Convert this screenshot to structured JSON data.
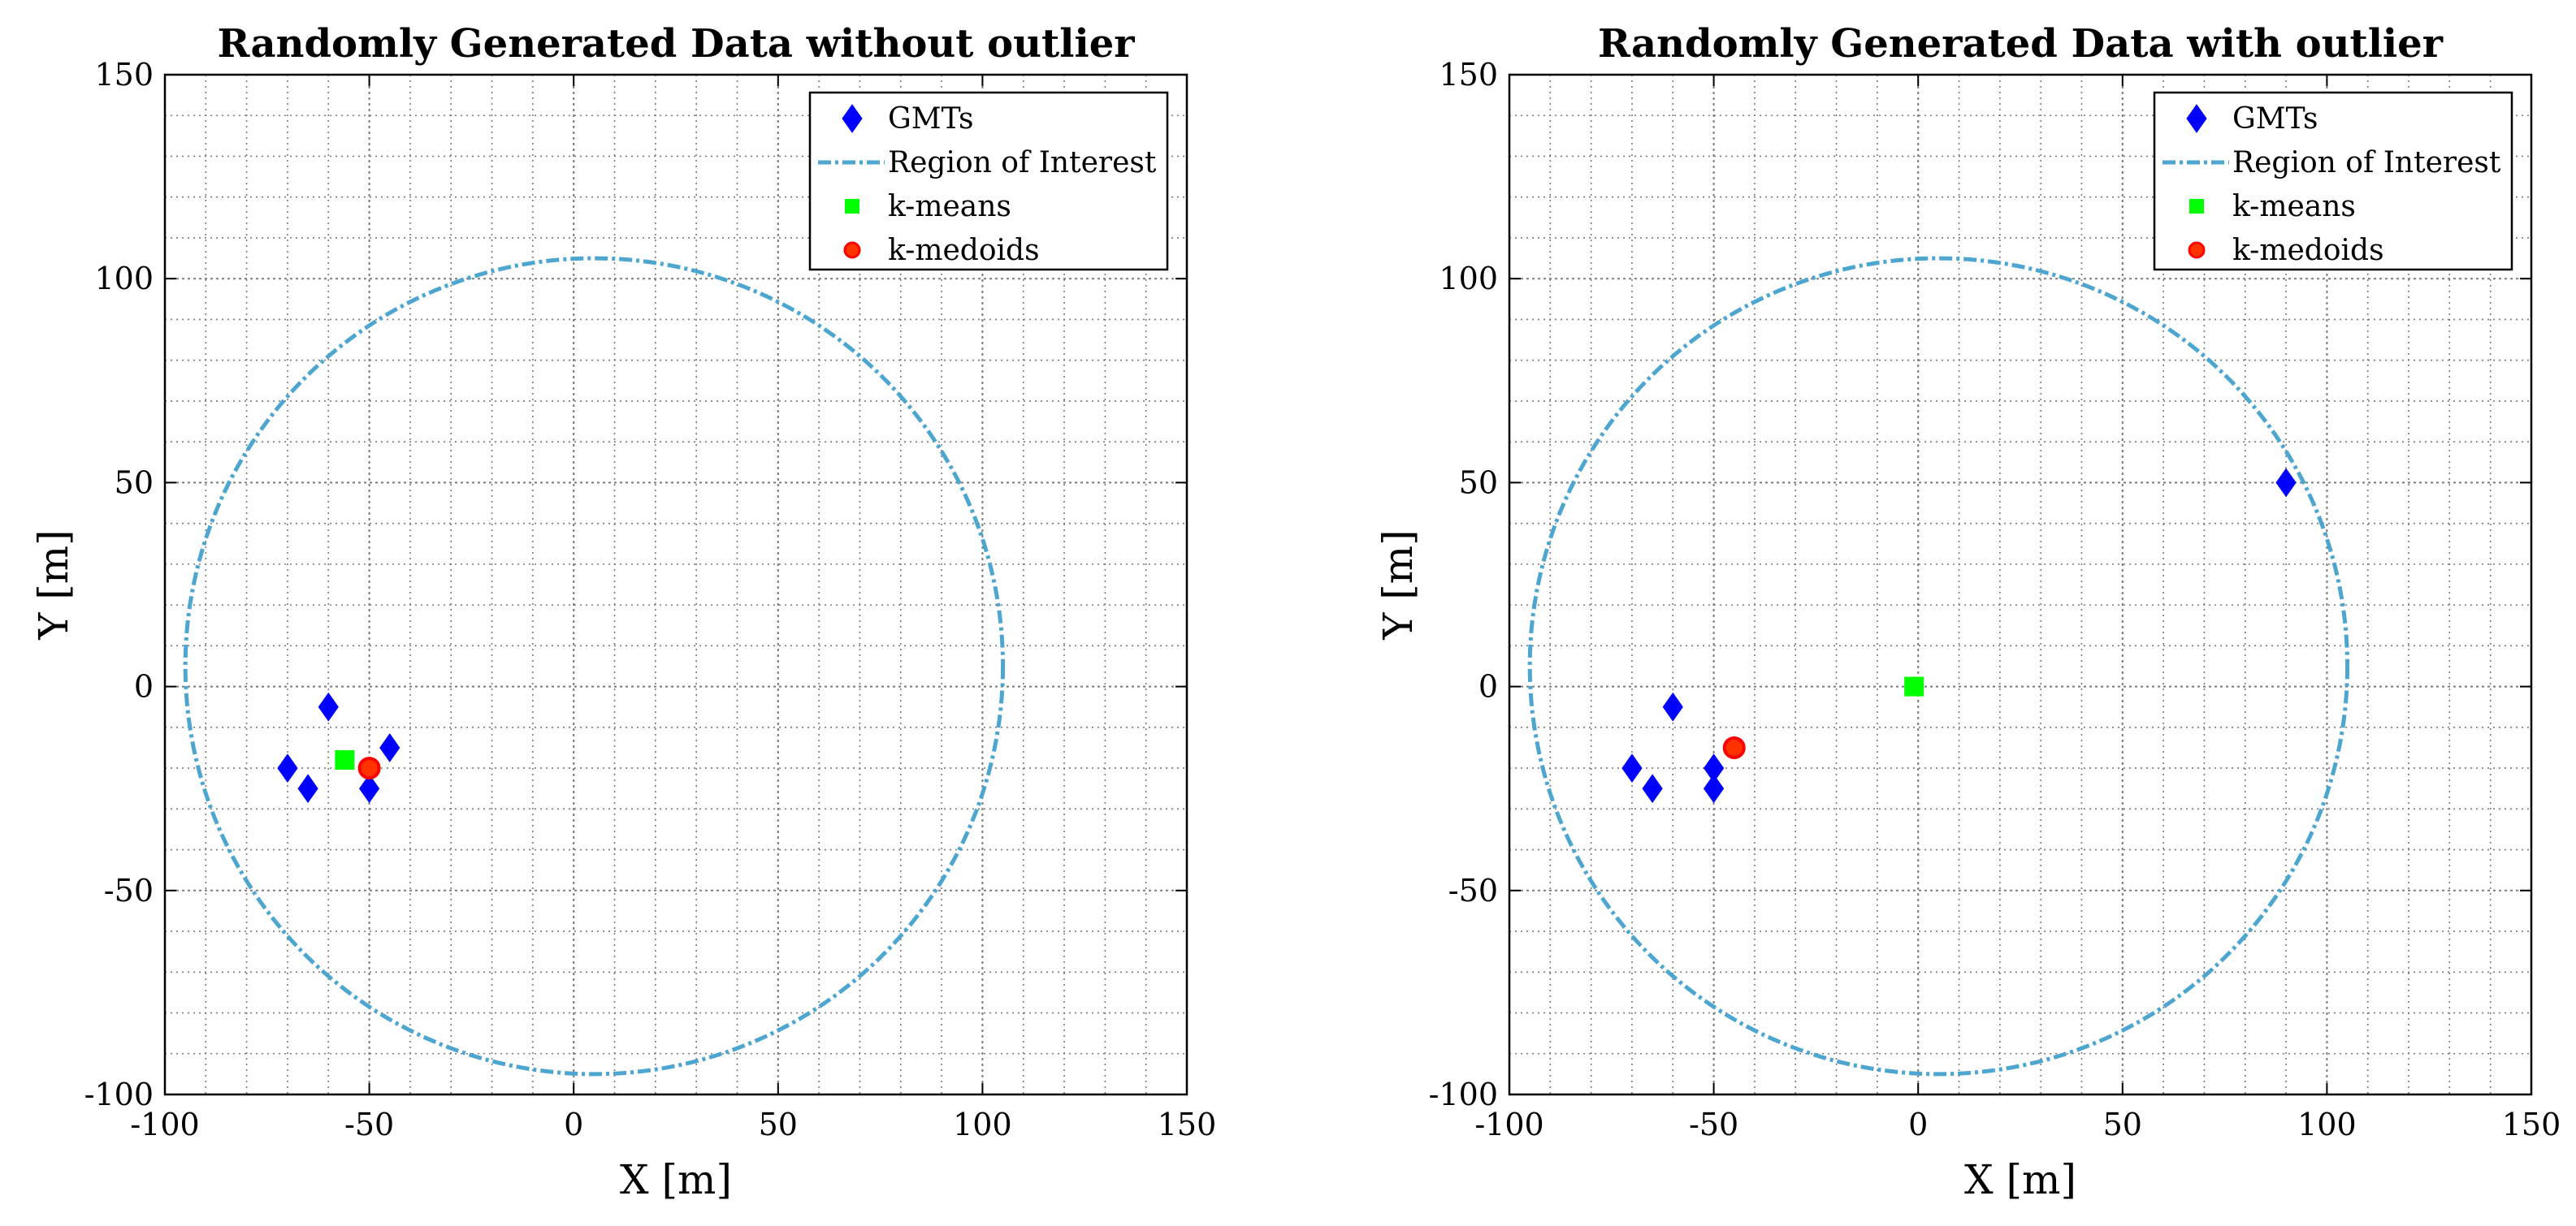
{
  "colors": {
    "gmt": "#0000ff",
    "region": "#4da6cf",
    "kmeans": "#00ff00",
    "kmedoids_face": "#ff3300",
    "kmedoids_edge": "#ff0000",
    "grid": "#7a7a7a"
  },
  "chart_data": [
    {
      "type": "scatter",
      "title": "Randomly Generated Data without outlier",
      "xlabel": "X [m]",
      "ylabel": "Y [m]",
      "xlim": [
        -100,
        150
      ],
      "ylim": [
        -100,
        150
      ],
      "xticks": [
        -100,
        -50,
        0,
        50,
        100,
        150
      ],
      "yticks": [
        -100,
        -50,
        0,
        50,
        100,
        150
      ],
      "grid": "on, minor 10 m",
      "legend_position": "top-right",
      "legend": [
        "GMTs",
        "Region of Interest",
        "k-means",
        "k-medoids"
      ],
      "region": {
        "center": [
          5,
          5
        ],
        "radius": 100
      },
      "series": [
        {
          "name": "GMTs",
          "marker": "diamond",
          "x": [
            -70,
            -65,
            -60,
            -50,
            -45
          ],
          "y": [
            -20,
            -25,
            -5,
            -25,
            -15
          ]
        },
        {
          "name": "k-means",
          "marker": "square",
          "x": [
            -56
          ],
          "y": [
            -18
          ]
        },
        {
          "name": "k-medoids",
          "marker": "circle",
          "x": [
            -50
          ],
          "y": [
            -20
          ]
        }
      ]
    },
    {
      "type": "scatter",
      "title": "Randomly Generated Data with outlier",
      "xlabel": "X [m]",
      "ylabel": "Y [m]",
      "xlim": [
        -100,
        150
      ],
      "ylim": [
        -100,
        150
      ],
      "xticks": [
        -100,
        -50,
        0,
        50,
        100,
        150
      ],
      "yticks": [
        -100,
        -50,
        0,
        50,
        100,
        150
      ],
      "grid": "on, minor 10 m",
      "legend_position": "top-right",
      "legend": [
        "GMTs",
        "Region of Interest",
        "k-means",
        "k-medoids"
      ],
      "region": {
        "center": [
          5,
          5
        ],
        "radius": 100
      },
      "series": [
        {
          "name": "GMTs",
          "marker": "diamond",
          "x": [
            -70,
            -65,
            -60,
            -50,
            -50,
            90
          ],
          "y": [
            -20,
            -25,
            -5,
            -20,
            -25,
            50
          ]
        },
        {
          "name": "k-means",
          "marker": "square",
          "x": [
            -1
          ],
          "y": [
            0
          ]
        },
        {
          "name": "k-medoids",
          "marker": "circle",
          "x": [
            -45
          ],
          "y": [
            -15
          ]
        }
      ]
    }
  ]
}
